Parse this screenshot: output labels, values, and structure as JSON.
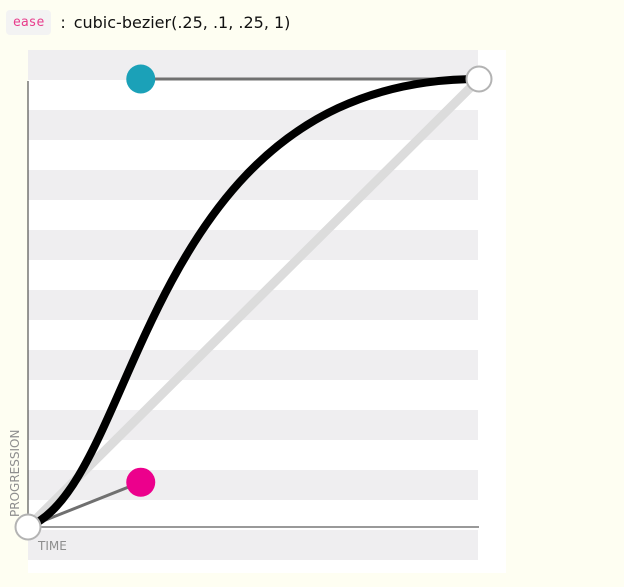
{
  "header": {
    "keyword": "ease",
    "separator": ":",
    "function_text": "cubic-bezier(.25, .1, .25, 1)"
  },
  "chart": {
    "y_axis_label": "PROGRESSION",
    "x_axis_label": "TIME"
  },
  "chart_data": {
    "type": "line",
    "curve": "cubic-bezier",
    "control_points": [
      [
        0.25,
        0.1
      ],
      [
        0.25,
        1.0
      ]
    ],
    "start_point": [
      0,
      0
    ],
    "end_point": [
      1,
      1
    ],
    "xlim": [
      0,
      1
    ],
    "ylim": [
      0,
      1
    ],
    "grid": "horizontal bands"
  },
  "colors": {
    "page_background": "#fefef2",
    "curve": "#000000",
    "diagonal": "#dcdcdc",
    "handle_1": "#ec008c",
    "handle_2": "#1ba1b8",
    "stripe": "#efeef0",
    "keyword_text": "#e83e8c",
    "keyword_background": "#f3f3f3"
  }
}
